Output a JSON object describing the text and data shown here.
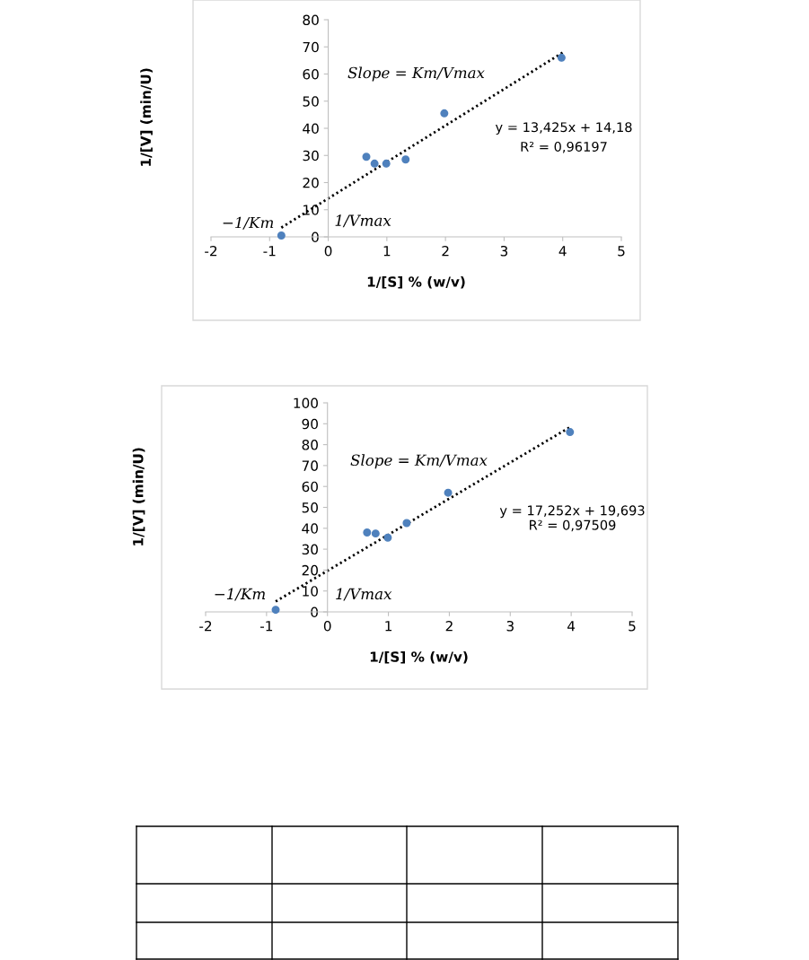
{
  "chart_data": [
    {
      "type": "scatter",
      "xlabel": "1/[S] % (w/v)",
      "ylabel": "1/[V] (min/U)",
      "series": [
        {
          "color": "#4f81bd",
          "marker": "circle",
          "x": [
            -0.8,
            0.65,
            0.79,
            0.99,
            1.32,
            1.98,
            3.98
          ],
          "values": [
            0.5,
            29.5,
            27,
            27,
            28.5,
            45.5,
            66
          ]
        },
        {
          "type": "line",
          "color": "#000000",
          "marker": "none",
          "line_style": "dotted",
          "x": [
            -0.8,
            4
          ],
          "values": [
            3.4,
            67.9
          ]
        }
      ],
      "grid": false,
      "legend": false,
      "xlim": [
        -2,
        5
      ],
      "xticks": [
        -2,
        -1,
        0,
        1,
        2,
        3,
        4,
        5
      ],
      "ylim": [
        0,
        80
      ],
      "yticks": [
        0,
        10,
        20,
        30,
        40,
        50,
        60,
        70,
        80
      ],
      "annotations": [
        "y = 13,425x + 14,18",
        "R² = 0,96197",
        "Slope = Km/Vmax",
        "−1/Km",
        "1/Vmax"
      ]
    },
    {
      "type": "scatter",
      "xlabel": "1/[S] % (w/v)",
      "ylabel": "1/[V] (min/U)",
      "series": [
        {
          "color": "#4f81bd",
          "marker": "circle",
          "x": [
            -0.85,
            0.65,
            0.79,
            0.99,
            1.3,
            1.98,
            3.98
          ],
          "values": [
            1,
            38,
            37.5,
            35.5,
            42.5,
            57,
            86
          ]
        },
        {
          "type": "line",
          "color": "#000000",
          "marker": "none",
          "line_style": "dotted",
          "x": [
            -0.85,
            4
          ],
          "values": [
            5,
            88.7
          ]
        }
      ],
      "grid": false,
      "legend": false,
      "xlim": [
        -2,
        5
      ],
      "xticks": [
        -2,
        -1,
        0,
        1,
        2,
        3,
        4,
        5
      ],
      "ylim": [
        0,
        100
      ],
      "yticks": [
        0,
        10,
        20,
        30,
        40,
        50,
        60,
        70,
        80,
        90,
        100
      ],
      "annotations": [
        "y = 17,252x + 19,693",
        "R² = 0,97509",
        "Slope = Km/Vmax",
        "−1/Km",
        "1/Vmax"
      ]
    }
  ]
}
